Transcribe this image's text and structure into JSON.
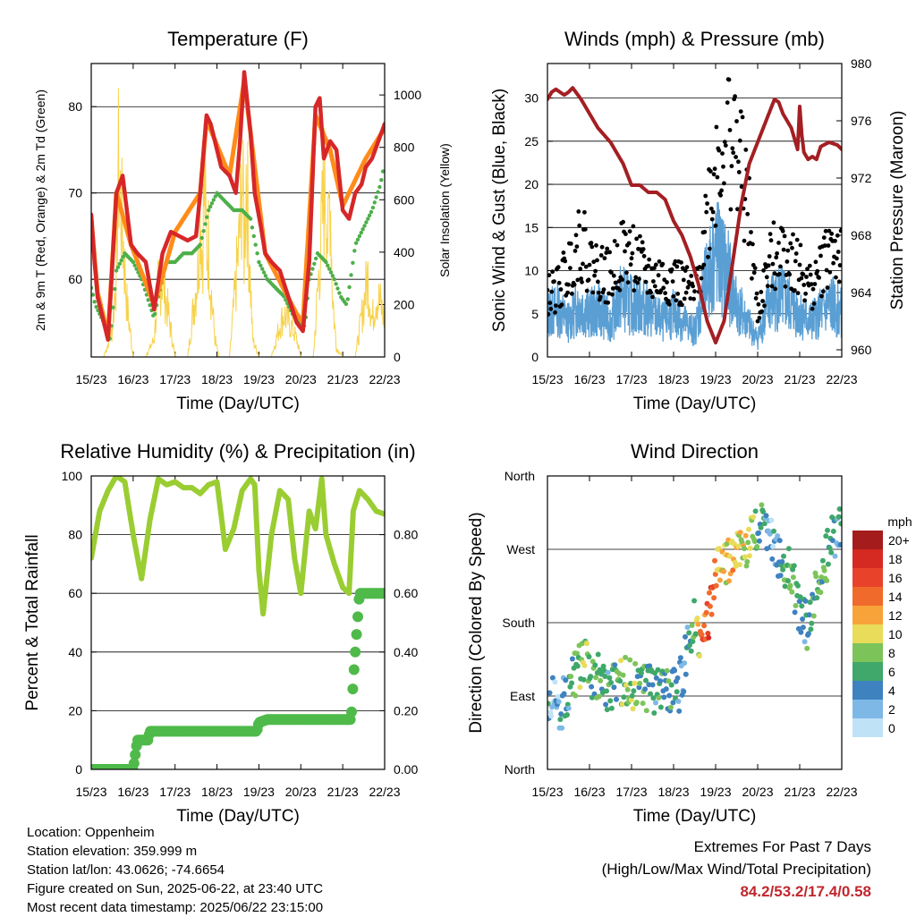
{
  "colors": {
    "temp_red": "#d62728",
    "temp_orange": "#ff8c1a",
    "dewpoint_green": "#4daf4a",
    "solar_yellow": "#f7d24a",
    "wind_blue": "#5a9fd4",
    "gust_black": "#000000",
    "pressure_maroon": "#a31f23",
    "rh_green": "#9acd32",
    "precip_green": "#4fba4a",
    "extremes_red": "#c0272d"
  },
  "info": {
    "location": "Location: Oppenheim",
    "elevation": "Station elevation: 359.999 m",
    "latlon": "Station lat/lon: 43.0626; -74.6654",
    "created": "Figure created on Sun, 2025-06-22, at 23:40 UTC",
    "latest": "Most recent data timestamp: 2025/06/22 23:15:00"
  },
  "extremes": {
    "title": "Extremes For Past 7 Days",
    "subtitle": "(High/Low/Max Wind/Total Precipitation)",
    "values": "84.2/53.2/17.4/0.58"
  },
  "chart_data": [
    {
      "type": "line",
      "title": "Temperature (F)",
      "xlabel": "Time (Day/UTC)",
      "ylabel": "2m & 9m T (Red, Orange) & 2m Td (Green)",
      "y2label": "Solar Insolation (Yellow)",
      "x_ticks": [
        "15/23",
        "16/23",
        "17/23",
        "18/23",
        "19/23",
        "20/23",
        "21/23",
        "22/23"
      ],
      "ylim": [
        51,
        85
      ],
      "y_ticks": [
        60,
        70,
        80
      ],
      "y2lim": [
        0,
        1120
      ],
      "y2_ticks": [
        0,
        200,
        400,
        600,
        800,
        1000
      ],
      "series": [
        {
          "name": "2m T",
          "color": "#d62728",
          "axis": "y",
          "x": [
            0,
            0.08,
            0.15,
            0.25,
            0.4,
            0.6,
            0.75,
            0.95,
            1.1,
            1.3,
            1.5,
            1.7,
            1.9,
            2.1,
            2.3,
            2.5,
            2.6,
            2.75,
            2.85,
            2.95,
            3.1,
            3.3,
            3.45,
            3.55,
            3.65,
            3.8,
            3.9,
            4.05,
            4.15,
            4.3,
            4.5,
            4.7,
            4.9,
            5.05,
            5.2,
            5.35,
            5.45,
            5.55,
            5.7,
            5.85,
            6.0,
            6.15,
            6.3,
            6.45,
            6.55,
            6.7,
            6.85,
            7.0
          ],
          "values": [
            67.5,
            62,
            58,
            56,
            53,
            70,
            72,
            64,
            63,
            62,
            56.5,
            63,
            65.5,
            65,
            64.5,
            65,
            70,
            79,
            78,
            76,
            73,
            72,
            70,
            76,
            84,
            77,
            70,
            66,
            63,
            62,
            61,
            58,
            55,
            54,
            62,
            80,
            81,
            74,
            76,
            75,
            68,
            67,
            70,
            71,
            73,
            74,
            76,
            78
          ]
        },
        {
          "name": "9m T",
          "color": "#ff8c1a",
          "axis": "y",
          "x": [
            0,
            0.15,
            0.4,
            0.6,
            0.95,
            1.5,
            2.0,
            2.6,
            2.75,
            3.3,
            3.65,
            4.15,
            4.9,
            5.05,
            5.35,
            5.7,
            6.0,
            6.55,
            7.0
          ],
          "values": [
            67,
            58.5,
            53.5,
            70,
            64,
            57,
            65.5,
            70,
            78.5,
            72,
            83,
            63,
            56,
            55,
            79,
            75,
            68.5,
            74,
            77.5
          ]
        },
        {
          "name": "2m Td",
          "color": "#4daf4a",
          "axis": "y",
          "x": [
            0,
            0.1,
            0.3,
            0.45,
            0.6,
            0.8,
            1.0,
            1.2,
            1.4,
            1.5,
            1.6,
            1.8,
            2.0,
            2.2,
            2.4,
            2.6,
            2.8,
            3.0,
            3.2,
            3.4,
            3.6,
            3.8,
            4.0,
            4.2,
            4.4,
            4.6,
            4.8,
            5.0,
            5.1,
            5.2,
            5.4,
            5.6,
            5.8,
            5.95,
            6.1,
            6.3,
            6.5,
            6.7,
            6.9,
            7.0
          ],
          "values": [
            59,
            57,
            55,
            53,
            61,
            63,
            62,
            60,
            57,
            55.5,
            58,
            62,
            62,
            63,
            63,
            64,
            68,
            70,
            69,
            68,
            68,
            67,
            62,
            60,
            59,
            58,
            56,
            55,
            54.5,
            60,
            63,
            62,
            60,
            58,
            57,
            64,
            66,
            68,
            71,
            73.5
          ]
        },
        {
          "name": "Solar",
          "color": "#f7d24a",
          "axis": "y2",
          "x": [
            0,
            0.3,
            0.5,
            0.6,
            0.65,
            0.75,
            0.85,
            1.0,
            1.3,
            1.5,
            1.6,
            1.7,
            1.8,
            1.9,
            2.0,
            2.3,
            2.55,
            2.6,
            2.65,
            2.7,
            2.75,
            2.8,
            2.85,
            2.95,
            3.05,
            3.3,
            3.55,
            3.6,
            3.65,
            3.7,
            3.75,
            3.8,
            3.85,
            4.0,
            4.3,
            4.5,
            4.6,
            4.7,
            4.8,
            4.9,
            5.0,
            5.3,
            5.55,
            5.6,
            5.65,
            5.7,
            5.75,
            5.8,
            5.85,
            6.0,
            6.3,
            6.5,
            6.6,
            6.7,
            6.8,
            6.9,
            7.0
          ],
          "values": [
            0,
            0,
            150,
            500,
            1080,
            700,
            300,
            0,
            0,
            100,
            400,
            450,
            300,
            150,
            0,
            0,
            500,
            900,
            550,
            1000,
            620,
            650,
            400,
            100,
            0,
            0,
            700,
            1050,
            600,
            1100,
            700,
            400,
            100,
            0,
            0,
            180,
            240,
            200,
            160,
            100,
            0,
            0,
            900,
            1020,
            600,
            1000,
            400,
            200,
            50,
            0,
            0,
            300,
            450,
            200,
            350,
            300,
            200
          ]
        }
      ]
    },
    {
      "type": "scatter",
      "title": "Winds (mph) & Pressure (mb)",
      "xlabel": "Time (Day/UTC)",
      "ylabel": "Sonic Wind & Gust (Blue, Black)",
      "y2label": "Station Pressure (Maroon)",
      "x_ticks": [
        "15/23",
        "16/23",
        "17/23",
        "18/23",
        "19/23",
        "20/23",
        "21/23",
        "22/23"
      ],
      "ylim": [
        0,
        34
      ],
      "y_ticks": [
        0,
        5,
        10,
        15,
        20,
        25,
        30
      ],
      "y2lim": [
        959.5,
        980
      ],
      "y2_ticks": [
        960,
        964,
        968,
        972,
        976,
        980
      ],
      "series": [
        {
          "name": "Wind",
          "color": "#5a9fd4",
          "axis": "y",
          "x": [
            0,
            0.25,
            0.5,
            0.75,
            1.0,
            1.25,
            1.5,
            1.75,
            2.0,
            2.25,
            2.5,
            2.75,
            3.0,
            3.25,
            3.5,
            3.75,
            4.0,
            4.25,
            4.5,
            4.75,
            5.0,
            5.25,
            5.5,
            5.75,
            6.0,
            6.25,
            6.5,
            6.75,
            7.0
          ],
          "values": [
            5,
            5.5,
            4,
            6,
            5,
            5.5,
            4,
            7,
            6,
            6,
            5,
            4,
            5,
            4,
            3,
            8,
            12,
            10,
            6,
            4,
            2,
            6,
            7,
            6,
            5,
            4,
            5,
            6,
            5
          ]
        },
        {
          "name": "Gust",
          "color": "#000000",
          "axis": "y",
          "x": [
            0,
            0.25,
            0.5,
            0.75,
            1.0,
            1.25,
            1.5,
            1.75,
            2.0,
            2.25,
            2.5,
            2.75,
            3.0,
            3.25,
            3.5,
            3.75,
            4.0,
            4.25,
            4.5,
            4.75,
            5.0,
            5.25,
            5.5,
            5.75,
            6.0,
            6.25,
            6.5,
            6.75,
            7.0
          ],
          "values": [
            7,
            8,
            10,
            14,
            11,
            10,
            9,
            12,
            12,
            10,
            9,
            9,
            9,
            8,
            7,
            15,
            22,
            27,
            24,
            18,
            5,
            10,
            13,
            12,
            10,
            8,
            10,
            13,
            11
          ]
        },
        {
          "name": "Pressure",
          "color": "#a31f23",
          "axis": "y2",
          "x": [
            0,
            0.1,
            0.2,
            0.4,
            0.5,
            0.6,
            0.8,
            1.0,
            1.2,
            1.5,
            1.8,
            2.0,
            2.2,
            2.4,
            2.6,
            2.8,
            3.0,
            3.2,
            3.4,
            3.6,
            3.8,
            4.0,
            4.2,
            4.4,
            4.6,
            4.8,
            5.0,
            5.2,
            5.4,
            5.5,
            5.6,
            5.8,
            5.95,
            6.0,
            6.05,
            6.1,
            6.2,
            6.3,
            6.4,
            6.5,
            6.7,
            6.9,
            7.0
          ],
          "values": [
            977.5,
            978,
            978.2,
            977.8,
            978,
            978.3,
            977.5,
            976.5,
            975.5,
            974.5,
            973,
            971.5,
            971.5,
            971,
            971,
            970.5,
            969,
            968,
            966.5,
            964.5,
            962,
            960.5,
            962,
            966,
            970,
            973,
            974.5,
            976,
            977.5,
            977.3,
            976.5,
            975.5,
            974,
            977,
            975,
            973.8,
            973.3,
            973.5,
            973.3,
            974.2,
            974.5,
            974.3,
            974
          ]
        }
      ]
    },
    {
      "type": "line",
      "title": "Relative Humidity (%) & Precipitation (in)",
      "xlabel": "Time (Day/UTC)",
      "ylabel": "Percent & Total Rainfall",
      "x_ticks": [
        "15/23",
        "16/23",
        "17/23",
        "18/23",
        "19/23",
        "20/23",
        "21/23",
        "22/23"
      ],
      "ylim": [
        0,
        100
      ],
      "y_ticks": [
        0,
        20,
        40,
        60,
        80,
        100
      ],
      "y2lim": [
        0,
        1.0
      ],
      "y2_ticks": [
        0.0,
        0.2,
        0.4,
        0.6,
        0.8
      ],
      "y2_tick_labels": [
        "0.00",
        "0.20",
        "0.40",
        "0.60",
        "0.80"
      ],
      "series": [
        {
          "name": "RH",
          "color": "#9acd32",
          "axis": "y",
          "x": [
            0,
            0.2,
            0.4,
            0.6,
            0.8,
            1.0,
            1.2,
            1.4,
            1.6,
            1.8,
            2.0,
            2.2,
            2.4,
            2.6,
            2.8,
            3.0,
            3.2,
            3.4,
            3.6,
            3.8,
            3.9,
            4.0,
            4.1,
            4.3,
            4.5,
            4.7,
            4.85,
            5.0,
            5.2,
            5.35,
            5.5,
            5.6,
            5.8,
            6.0,
            6.15,
            6.25,
            6.4,
            6.6,
            6.8,
            7.0
          ],
          "values": [
            72,
            88,
            95,
            100,
            98,
            80,
            65,
            85,
            99,
            97,
            98,
            96,
            96,
            94,
            97,
            98,
            75,
            82,
            95,
            99,
            97,
            68,
            53,
            80,
            95,
            92,
            72,
            60,
            88,
            82,
            99,
            80,
            70,
            62,
            60,
            88,
            95,
            92,
            88,
            87
          ]
        },
        {
          "name": "Precipitation",
          "color": "#4fba4a",
          "axis": "y2",
          "x": [
            0,
            1.0,
            1.05,
            1.1,
            1.35,
            1.4,
            2.0,
            3.0,
            3.95,
            4.0,
            4.2,
            5.0,
            6.0,
            6.2,
            6.25,
            6.3,
            6.35,
            6.4,
            7.0
          ],
          "values": [
            0.0,
            0.0,
            0.05,
            0.1,
            0.1,
            0.13,
            0.13,
            0.13,
            0.13,
            0.16,
            0.17,
            0.17,
            0.17,
            0.17,
            0.3,
            0.4,
            0.5,
            0.6,
            0.6
          ]
        }
      ]
    },
    {
      "type": "scatter",
      "title": "Wind Direction",
      "xlabel": "Time (Day/UTC)",
      "ylabel": "Direction (Colored By Speed)",
      "x_ticks": [
        "15/23",
        "16/23",
        "17/23",
        "18/23",
        "19/23",
        "20/23",
        "21/23",
        "22/23"
      ],
      "y_ticks": [
        "North",
        "East",
        "South",
        "West",
        "North"
      ],
      "ylim": [
        0,
        360
      ],
      "colorbar": {
        "label": "mph",
        "levels": [
          "20+",
          "18",
          "16",
          "14",
          "12",
          "10",
          "8",
          "6",
          "4",
          "2",
          "0"
        ],
        "colors": [
          "#a51c1c",
          "#d42a22",
          "#e8432a",
          "#f06a2c",
          "#f8a23a",
          "#e8dc5a",
          "#7cc45a",
          "#3fa86a",
          "#3f82c0",
          "#7eb8e6",
          "#bfe2f7"
        ]
      },
      "series": [
        {
          "name": "Direction",
          "x": [
            0,
            0.1,
            0.2,
            0.3,
            0.5,
            0.7,
            0.9,
            1.1,
            1.3,
            1.5,
            1.7,
            1.9,
            2.1,
            2.3,
            2.5,
            2.7,
            2.9,
            3.1,
            3.3,
            3.5,
            3.7,
            3.9,
            4.0,
            4.2,
            4.4,
            4.6,
            4.8,
            5.0,
            5.2,
            5.4,
            5.6,
            5.8,
            6.0,
            6.2,
            6.4,
            6.6,
            6.8,
            7.0
          ],
          "values": [
            70,
            90,
            85,
            75,
            100,
            120,
            130,
            110,
            115,
            95,
            105,
            110,
            100,
            105,
            95,
            100,
            100,
            90,
            140,
            190,
            150,
            200,
            240,
            250,
            265,
            275,
            280,
            300,
            290,
            275,
            245,
            240,
            190,
            175,
            230,
            255,
            285,
            300
          ],
          "speeds": [
            3,
            2,
            3,
            3,
            5,
            7,
            8,
            6,
            6,
            5,
            7,
            8,
            7,
            6,
            5,
            6,
            6,
            3,
            4,
            7,
            14,
            16,
            12,
            10,
            11,
            10,
            9,
            6,
            4,
            3,
            6,
            8,
            4,
            5,
            7,
            6,
            5,
            4
          ]
        }
      ]
    }
  ]
}
